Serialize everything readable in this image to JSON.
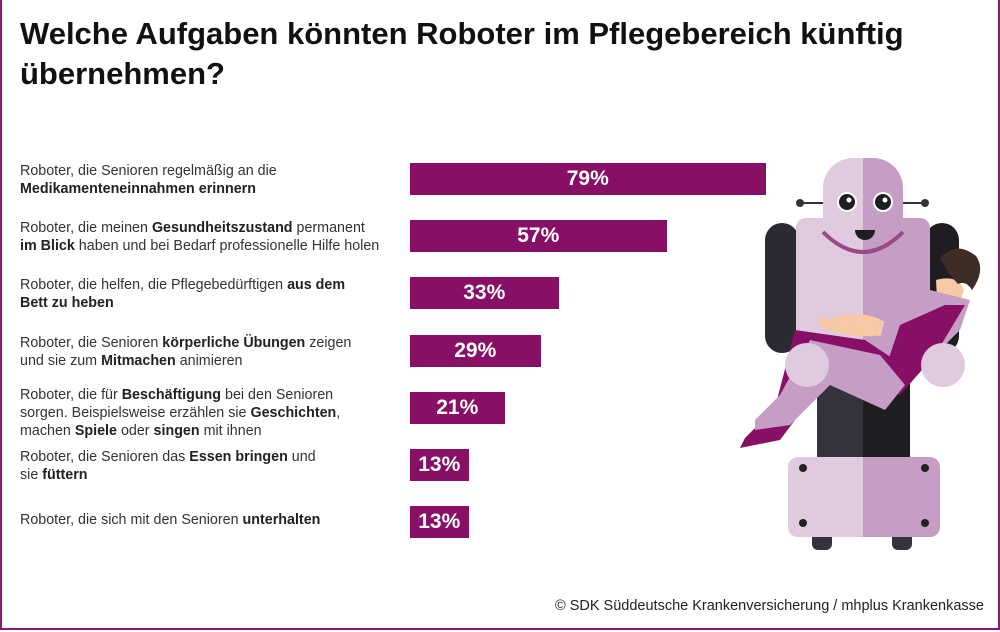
{
  "title": "Welche Aufgaben könnten Roboter im Pflegebereich künftig übernehmen?",
  "colors": {
    "bar": "#870f66",
    "robot_light": "#dfcadf",
    "robot_mid": "#c69dc4",
    "robot_dark": "#2b2a33"
  },
  "chart_data": {
    "type": "bar",
    "orientation": "horizontal",
    "title": "Welche Aufgaben könnten Roboter im Pflegebereich künftig übernehmen?",
    "categories": [
      "Roboter, die Senioren regelmäßig an die Medikamenteneinnahmen erinnern",
      "Roboter, die meinen Gesundheitszustand permanent im Blick haben und bei Bedarf professionelle Hilfe holen",
      "Roboter, die helfen, die Pflegebedürftigen aus dem Bett zu heben",
      "Roboter, die Senioren körperliche Übungen zeigen und sie zum Mitmachen animieren",
      "Roboter, die für Beschäftigung bei den Senioren sorgen. Beispielsweise erzählen sie Geschichten, machen Spiele oder singen mit ihnen",
      "Roboter, die Senioren das Essen bringen und sie füttern",
      "Roboter, die sich mit den Senioren unterhalten"
    ],
    "values": [
      79,
      57,
      33,
      29,
      21,
      13,
      13
    ],
    "value_labels": [
      "79%",
      "57%",
      "33%",
      "29%",
      "21%",
      "13%",
      "13%"
    ],
    "unit": "%",
    "xlim": [
      0,
      100
    ],
    "grid": false
  },
  "label_parts": [
    [
      [
        "Roboter, die Senioren regelmäßig an die ",
        false
      ],
      [
        "\n",
        false
      ],
      [
        "Medikamenteneinnahmen erinnern",
        true
      ]
    ],
    [
      [
        "Roboter, die meinen ",
        false
      ],
      [
        "Gesundheitszustand",
        true
      ],
      [
        " permanent",
        false
      ],
      [
        "\n",
        false
      ],
      [
        "im Blick",
        true
      ],
      [
        " haben und bei Bedarf professionelle Hilfe holen",
        false
      ]
    ],
    [
      [
        "Roboter, die helfen, die Pflegebedürftigen ",
        false
      ],
      [
        "aus dem",
        true
      ],
      [
        "\n",
        false
      ],
      [
        "Bett zu heben",
        true
      ]
    ],
    [
      [
        "Roboter, die Senioren ",
        false
      ],
      [
        "körperliche Übungen",
        true
      ],
      [
        " zeigen",
        false
      ],
      [
        "\n",
        false
      ],
      [
        "und sie zum ",
        false
      ],
      [
        "Mitmachen",
        true
      ],
      [
        " animieren",
        false
      ]
    ],
    [
      [
        "Roboter, die für ",
        false
      ],
      [
        "Beschäftigung",
        true
      ],
      [
        " bei den Senioren",
        false
      ],
      [
        "\n",
        false
      ],
      [
        "sorgen. Beispielsweise erzählen sie ",
        false
      ],
      [
        "Geschichten",
        true
      ],
      [
        ",",
        false
      ],
      [
        "\n",
        false
      ],
      [
        "machen ",
        false
      ],
      [
        "Spiele",
        true
      ],
      [
        " oder ",
        false
      ],
      [
        "singen",
        true
      ],
      [
        " mit ihnen",
        false
      ]
    ],
    [
      [
        "Roboter, die Senioren das ",
        false
      ],
      [
        "Essen bringen",
        true
      ],
      [
        " und",
        false
      ],
      [
        "\n",
        false
      ],
      [
        "sie ",
        false
      ],
      [
        "füttern",
        true
      ]
    ],
    [
      [
        "Roboter, die sich mit den Senioren ",
        false
      ],
      [
        "unterhalten",
        true
      ]
    ]
  ],
  "illustration": "robot-carrying-person",
  "copyright": "© SDK Süddeutsche Krankenversicherung / mhplus Krankenkasse"
}
